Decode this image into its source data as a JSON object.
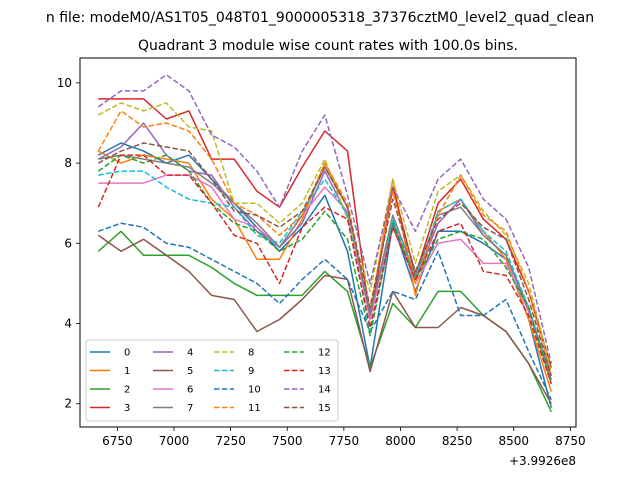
{
  "figure": {
    "suptitle": "n file: modeM0/AS1T05_048T01_9000005318_37376cztM0_level2_quad_clean",
    "title": "Quadrant 3 module wise count rates with 100.0s bins.",
    "offset_label": "+3.9926e8"
  },
  "chart_data": {
    "type": "line",
    "title": "Quadrant 3 module wise count rates with 100.0s bins.",
    "xlabel": "",
    "ylabel": "",
    "x_offset": 399260000,
    "xlim": [
      6585,
      8775
    ],
    "ylim": [
      1.42,
      10.62
    ],
    "xticks": [
      6750,
      7000,
      7250,
      7500,
      7750,
      8000,
      8250,
      8500,
      8750
    ],
    "yticks": [
      2,
      4,
      6,
      8,
      10
    ],
    "grid": false,
    "legend_placement": "lower-left",
    "x": [
      6666,
      6766,
      6866,
      6966,
      7066,
      7166,
      7266,
      7366,
      7466,
      7566,
      7666,
      7766,
      7866,
      7966,
      8066,
      8166,
      8266,
      8366,
      8466,
      8566,
      8666
    ],
    "series": [
      {
        "name": "0",
        "color": "#1f77b4",
        "dash": "solid",
        "values": [
          8.2,
          8.5,
          8.3,
          8.0,
          8.2,
          7.6,
          7.0,
          6.4,
          5.8,
          6.4,
          7.2,
          5.8,
          2.9,
          6.5,
          4.8,
          6.3,
          6.3,
          6.0,
          5.6,
          4.1,
          1.9
        ]
      },
      {
        "name": "1",
        "color": "#ff7f0e",
        "dash": "solid",
        "values": [
          8.3,
          8.0,
          8.2,
          8.1,
          8.0,
          7.1,
          6.6,
          5.6,
          5.6,
          6.6,
          8.0,
          6.9,
          4.2,
          7.6,
          4.7,
          6.8,
          7.1,
          6.3,
          5.6,
          4.1,
          2.3
        ]
      },
      {
        "name": "2",
        "color": "#2ca02c",
        "dash": "solid",
        "values": [
          5.8,
          6.3,
          5.7,
          5.7,
          5.7,
          5.4,
          5.0,
          4.7,
          4.7,
          4.7,
          5.3,
          4.8,
          2.9,
          4.5,
          3.9,
          4.8,
          4.8,
          4.2,
          3.8,
          3.0,
          1.8
        ]
      },
      {
        "name": "3",
        "color": "#d62728",
        "dash": "solid",
        "values": [
          9.6,
          9.6,
          9.6,
          9.1,
          9.3,
          8.1,
          8.1,
          7.3,
          6.9,
          7.9,
          8.8,
          8.3,
          4.1,
          7.4,
          5.2,
          7.0,
          7.6,
          6.6,
          6.1,
          4.8,
          2.9
        ]
      },
      {
        "name": "4",
        "color": "#9467bd",
        "dash": "solid",
        "values": [
          8.1,
          8.4,
          9.0,
          8.2,
          7.8,
          7.7,
          6.9,
          6.3,
          5.9,
          6.5,
          7.8,
          6.7,
          4.3,
          6.4,
          5.1,
          6.5,
          7.1,
          6.2,
          5.7,
          4.3,
          2.7
        ]
      },
      {
        "name": "5",
        "color": "#8c564b",
        "dash": "solid",
        "values": [
          6.2,
          5.8,
          6.1,
          5.7,
          5.3,
          4.7,
          4.6,
          3.8,
          4.1,
          4.6,
          5.2,
          5.1,
          2.8,
          4.8,
          3.9,
          3.9,
          4.4,
          4.2,
          3.8,
          3.0,
          2.0
        ]
      },
      {
        "name": "6",
        "color": "#e377c2",
        "dash": "solid",
        "values": [
          7.5,
          7.5,
          7.5,
          7.7,
          7.7,
          7.4,
          6.6,
          6.4,
          5.9,
          6.7,
          7.4,
          6.8,
          4.1,
          6.6,
          5.0,
          6.0,
          6.1,
          5.5,
          5.5,
          4.3,
          2.6
        ]
      },
      {
        "name": "7",
        "color": "#7f7f7f",
        "dash": "solid",
        "values": [
          8.1,
          8.2,
          8.1,
          8.0,
          7.9,
          7.5,
          7.0,
          6.5,
          5.9,
          6.7,
          7.9,
          6.9,
          4.2,
          6.7,
          5.2,
          6.7,
          6.9,
          6.2,
          5.7,
          4.4,
          2.6
        ]
      },
      {
        "name": "8",
        "color": "#bcbd22",
        "dash": "dashed",
        "values": [
          9.2,
          9.5,
          9.3,
          9.5,
          8.9,
          8.8,
          7.0,
          7.0,
          6.5,
          7.0,
          8.1,
          6.6,
          4.8,
          7.6,
          5.5,
          7.3,
          7.7,
          6.8,
          6.2,
          5.0,
          2.8
        ]
      },
      {
        "name": "9",
        "color": "#17becf",
        "dash": "dashed",
        "values": [
          7.7,
          7.8,
          7.8,
          7.4,
          7.1,
          7.0,
          6.9,
          6.2,
          6.0,
          6.8,
          7.6,
          6.7,
          3.8,
          6.6,
          5.1,
          6.8,
          7.1,
          6.3,
          5.8,
          4.4,
          2.5
        ]
      },
      {
        "name": "10",
        "color": "#1f77b4",
        "dash": "dashed",
        "values": [
          6.3,
          6.5,
          6.4,
          6.0,
          5.9,
          5.6,
          5.3,
          5.0,
          4.5,
          5.1,
          5.6,
          5.1,
          3.8,
          4.8,
          4.6,
          5.8,
          4.2,
          4.2,
          4.6,
          3.3,
          2.1
        ]
      },
      {
        "name": "11",
        "color": "#ff7f0e",
        "dash": "dashed",
        "values": [
          8.3,
          9.3,
          8.9,
          9.0,
          8.8,
          8.1,
          7.0,
          6.7,
          6.2,
          6.7,
          8.0,
          7.0,
          4.4,
          7.3,
          5.0,
          6.7,
          7.7,
          6.7,
          6.3,
          4.8,
          2.7
        ]
      },
      {
        "name": "12",
        "color": "#2ca02c",
        "dash": "dashed",
        "values": [
          7.8,
          8.2,
          8.0,
          8.2,
          7.8,
          7.0,
          6.5,
          6.3,
          5.8,
          6.1,
          6.8,
          6.1,
          3.7,
          6.5,
          5.1,
          6.1,
          6.3,
          6.1,
          5.4,
          4.4,
          2.5
        ]
      },
      {
        "name": "13",
        "color": "#d62728",
        "dash": "dashed",
        "values": [
          6.9,
          8.2,
          8.2,
          7.7,
          7.7,
          7.0,
          6.2,
          6.0,
          5.0,
          6.4,
          6.9,
          6.6,
          3.9,
          6.4,
          5.1,
          6.3,
          6.5,
          5.3,
          5.2,
          4.2,
          2.5
        ]
      },
      {
        "name": "14",
        "color": "#9467bd",
        "dash": "dashed",
        "values": [
          9.4,
          9.8,
          9.8,
          10.2,
          9.8,
          8.7,
          8.4,
          7.8,
          6.9,
          8.3,
          9.2,
          7.2,
          5.0,
          7.4,
          6.3,
          7.6,
          8.1,
          7.1,
          6.6,
          5.4,
          3.0
        ]
      },
      {
        "name": "15",
        "color": "#8c564b",
        "dash": "dashed",
        "values": [
          8.0,
          8.3,
          8.5,
          8.4,
          8.3,
          7.6,
          6.8,
          6.7,
          6.4,
          6.8,
          7.9,
          6.9,
          4.4,
          7.1,
          5.3,
          6.6,
          7.0,
          6.4,
          6.1,
          4.6,
          2.7
        ]
      }
    ]
  }
}
